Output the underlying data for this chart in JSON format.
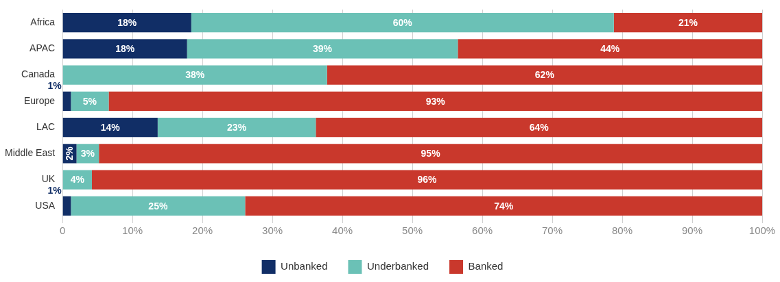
{
  "chart_data": {
    "type": "bar",
    "orientation": "horizontal",
    "stacked": true,
    "categories": [
      "Africa",
      "APAC",
      "Canada",
      "Europe",
      "LAC",
      "Middle East",
      "UK",
      "USA"
    ],
    "series": [
      {
        "name": "Unbanked",
        "color": "#112e66",
        "values": [
          18.4,
          17.8,
          null,
          1.2,
          13.6,
          2.0,
          null,
          1.2
        ],
        "value_labels": [
          "18%",
          "18%",
          null,
          "1%",
          "14%",
          "2%",
          null,
          "1%"
        ]
      },
      {
        "name": "Underbanked",
        "color": "#6bc1b6",
        "values": [
          60.4,
          38.7,
          37.8,
          5.4,
          22.6,
          3.2,
          4.2,
          24.9
        ],
        "value_labels": [
          "60%",
          "39%",
          "38%",
          "5%",
          "23%",
          "3%",
          "4%",
          "25%"
        ]
      },
      {
        "name": "Banked",
        "color": "#c9382c",
        "values": [
          21.2,
          43.5,
          62.2,
          93.4,
          63.8,
          94.8,
          95.8,
          73.9
        ],
        "value_labels": [
          "21%",
          "44%",
          "62%",
          "93%",
          "64%",
          "95%",
          "96%",
          "74%"
        ]
      }
    ],
    "xlim": [
      0,
      100
    ],
    "xticks": [
      {
        "value": 0,
        "label": "0"
      },
      {
        "value": 10,
        "label": "10%"
      },
      {
        "value": 20,
        "label": "20%"
      },
      {
        "value": 30,
        "label": "30%"
      },
      {
        "value": 40,
        "label": "40%"
      },
      {
        "value": 50,
        "label": "50%"
      },
      {
        "value": 60,
        "label": "60%"
      },
      {
        "value": 70,
        "label": "70%"
      },
      {
        "value": 80,
        "label": "80%"
      },
      {
        "value": 90,
        "label": "90%"
      },
      {
        "value": 100,
        "label": "100%"
      }
    ],
    "grid": "x",
    "legend": "bottom"
  }
}
